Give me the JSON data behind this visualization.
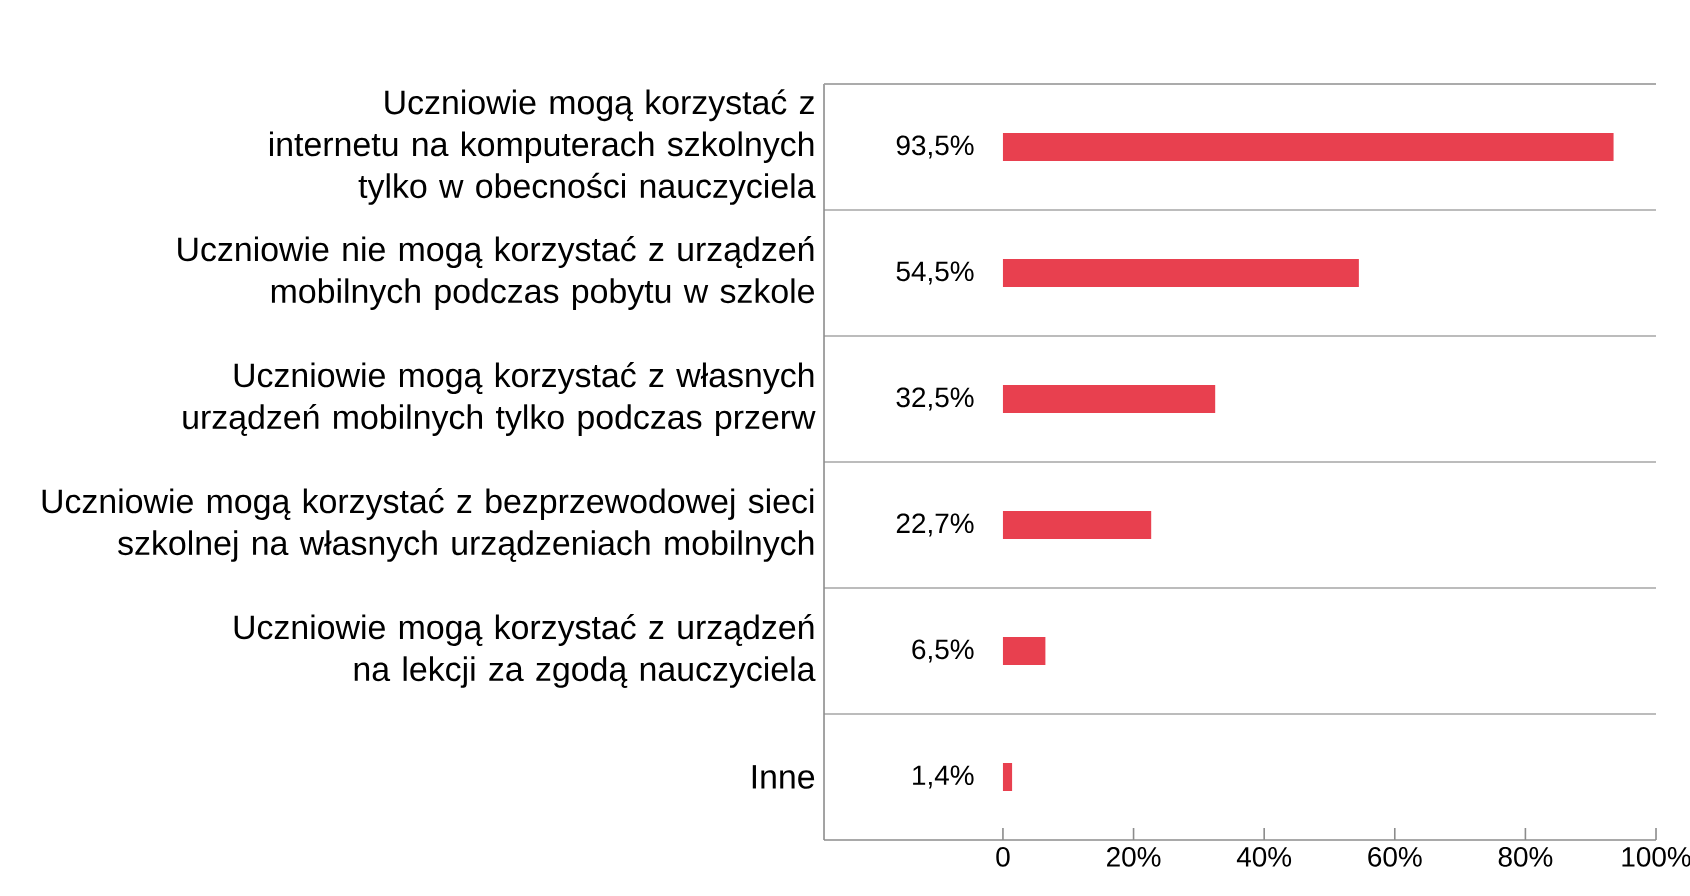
{
  "chart_data": {
    "type": "bar",
    "orientation": "horizontal",
    "categories": [
      "Uczniowie mogą korzystać z internetu na komputerach szkolnych tylko w obecności nauczyciela",
      "Uczniowie nie mogą korzystać z urządzeń mobilnych podczas pobytu w szkole",
      "Uczniowie mogą korzystać z własnych urządzeń mobilnych tylko podczas przerw",
      "Uczniowie mogą korzystać z bezprzewodowej sieci szkolnej na własnych urządzeniach mobilnych",
      "Uczniowie mogą korzystać z urządzeń na lekcji za zgodą nauczyciela",
      "Inne"
    ],
    "values": [
      93.5,
      54.5,
      32.5,
      22.7,
      6.5,
      1.4
    ],
    "value_labels": [
      "93,5%",
      "54,5%",
      "32,5%",
      "22,7%",
      "6,5%",
      "1,4%"
    ],
    "color": "#e8404f",
    "xlim": [
      -27.4,
      100
    ],
    "xticks": [
      0,
      {
        "value": 20,
        "label": "20%"
      },
      {
        "value": 40,
        "label": "40%"
      },
      {
        "value": 60,
        "label": "60%"
      },
      {
        "value": 80,
        "label": "80%"
      },
      {
        "value": 100,
        "label": "100%"
      }
    ],
    "grid": "y"
  }
}
